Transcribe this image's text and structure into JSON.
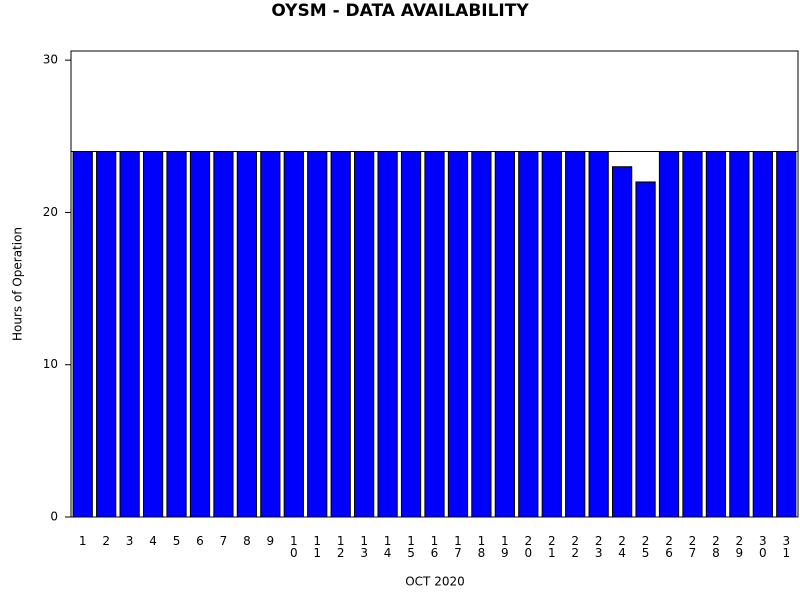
{
  "chart_data": {
    "type": "bar",
    "title": "OYSM - DATA AVAILABILITY",
    "x_label": "OCT 2020",
    "y_label": "Hours of Operation",
    "categories": [
      "1",
      "2",
      "3",
      "4",
      "5",
      "6",
      "7",
      "8",
      "9",
      "10",
      "11",
      "12",
      "13",
      "14",
      "15",
      "16",
      "17",
      "18",
      "19",
      "20",
      "21",
      "22",
      "23",
      "24",
      "25",
      "26",
      "27",
      "28",
      "29",
      "30",
      "31"
    ],
    "values": [
      24,
      24,
      24,
      24,
      24,
      24,
      24,
      24,
      24,
      24,
      24,
      24,
      24,
      24,
      24,
      24,
      24,
      24,
      24,
      24,
      24,
      24,
      24,
      23,
      22,
      24,
      24,
      24,
      24,
      24,
      24
    ],
    "color": "#0000ff",
    "reference_line": 24,
    "ylim": [
      0,
      30.6
    ],
    "yticks": [
      0,
      10,
      20,
      30
    ]
  }
}
